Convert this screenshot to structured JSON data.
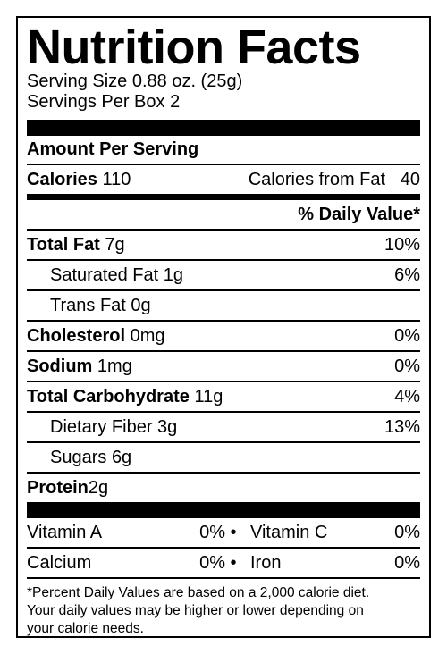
{
  "title": "Nutrition Facts",
  "serving": {
    "size": "Serving Size 0.88 oz. (25g)",
    "per_box": "Servings Per Box 2"
  },
  "amount_per_serving": "Amount Per Serving",
  "calories": {
    "label": "Calories",
    "value": "110",
    "from_fat_label": "Calories from Fat",
    "from_fat_value": "40"
  },
  "daily_value_header": "% Daily Value*",
  "nutrients": {
    "total_fat": {
      "label": "Total Fat",
      "amount": "7g",
      "dv": "10%"
    },
    "saturated_fat": {
      "label": "Saturated Fat",
      "amount": "1g",
      "dv": "6%"
    },
    "trans_fat": {
      "label": "Trans Fat",
      "amount": "0g"
    },
    "cholesterol": {
      "label": "Cholesterol",
      "amount": "0mg",
      "dv": "0%"
    },
    "sodium": {
      "label": "Sodium",
      "amount": "1mg",
      "dv": "0%"
    },
    "total_carbohydrate": {
      "label": "Total Carbohydrate",
      "amount": "11g",
      "dv": "4%"
    },
    "dietary_fiber": {
      "label": "Dietary Fiber",
      "amount": "3g",
      "dv": "13%"
    },
    "sugars": {
      "label": "Sugars",
      "amount": "6g"
    },
    "protein": {
      "label": "Protein",
      "amount": "2g"
    }
  },
  "vitamins": [
    {
      "left_label": "Vitamin A",
      "left_value": "0%",
      "bullet": "•",
      "right_label": "Vitamin C",
      "right_value": "0%"
    },
    {
      "left_label": "Calcium",
      "left_value": "0%",
      "bullet": "•",
      "right_label": "Iron",
      "right_value": "0%"
    }
  ],
  "footnote": {
    "line1": "*Percent Daily Values are based on a 2,000 calorie diet.",
    "line2": "Your daily values may be higher or lower depending on",
    "line3": "your calorie needs."
  }
}
